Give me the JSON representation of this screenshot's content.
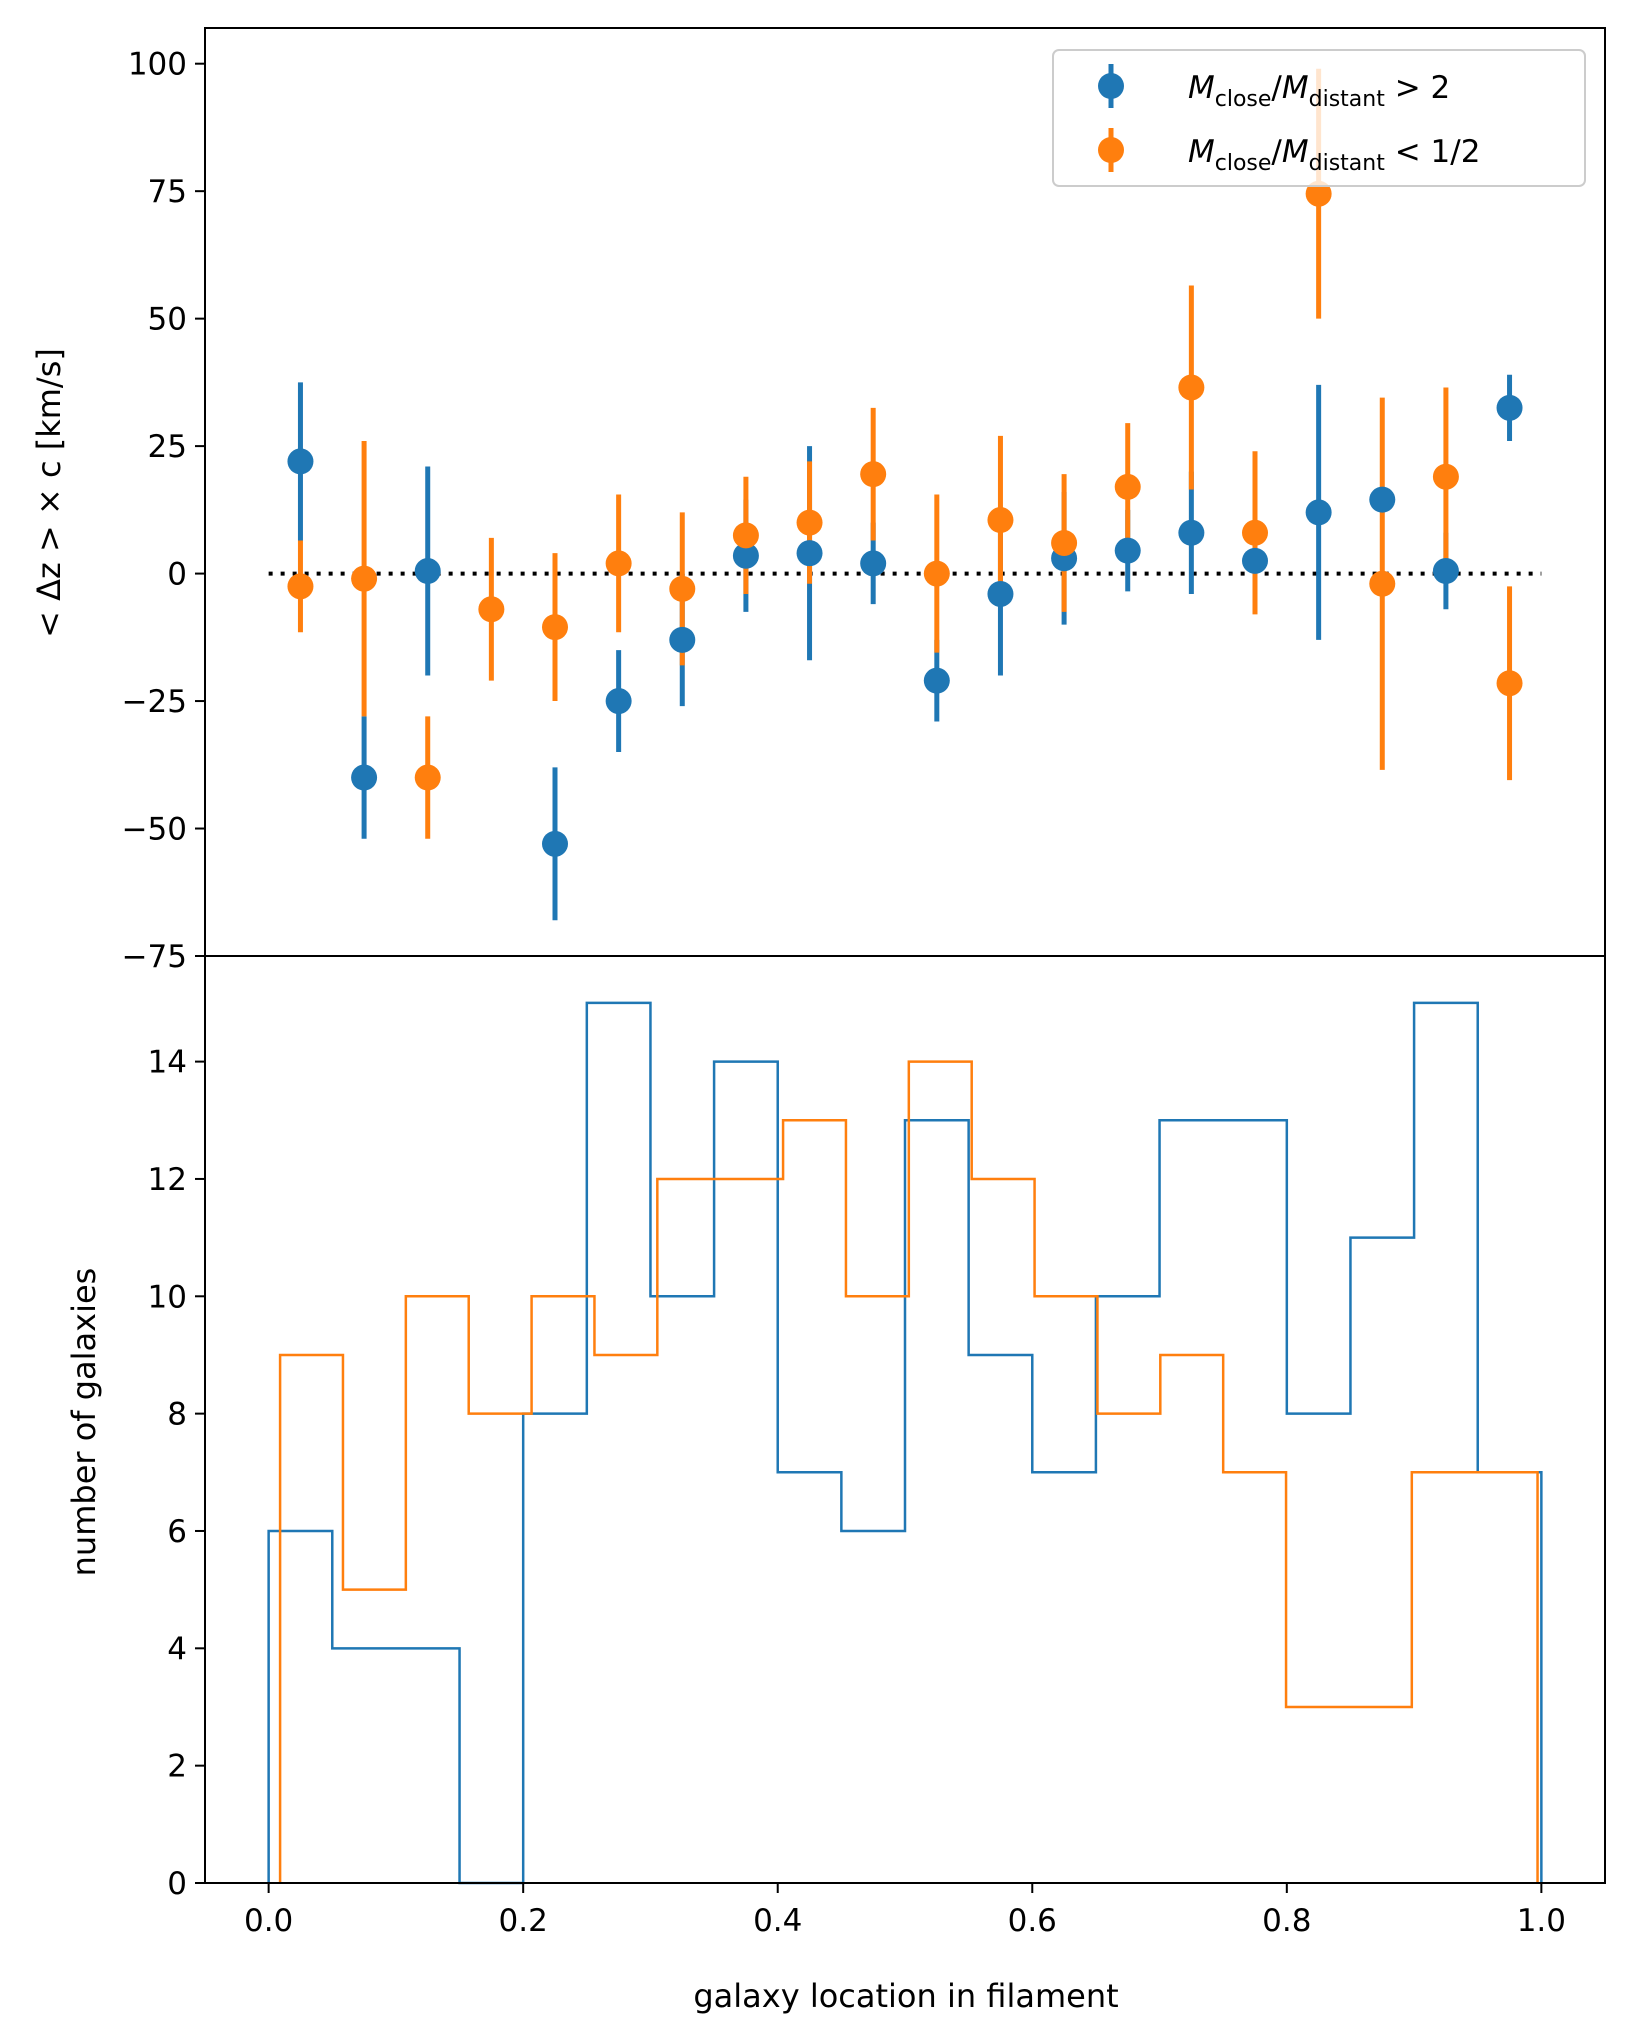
{
  "chart_data": [
    {
      "type": "scatter",
      "panel": "top",
      "title": "",
      "ylabel": "< Δz > × c [km/s]",
      "xlabel": "",
      "xlim": [
        -0.05,
        1.05
      ],
      "ylim": [
        -75,
        107
      ],
      "yticks": [
        -75,
        -50,
        -25,
        0,
        25,
        50,
        75,
        100
      ],
      "ytick_labels": [
        "−75",
        "−50",
        "−25",
        "0",
        "25",
        "50",
        "75",
        "100"
      ],
      "reference_line": {
        "y": 0,
        "x_from": 0.0,
        "x_to": 1.0,
        "style": "dotted",
        "color": "#000000"
      },
      "legend_location": "upper-right",
      "series": [
        {
          "name": "M_close/M_distant > 2",
          "legend": {
            "var1": "M",
            "sub1": "close",
            "slash": "/",
            "var2": "M",
            "sub2": "distant",
            "op": " > 2"
          },
          "color": "#1f77b4",
          "x": [
            0.025,
            0.075,
            0.125,
            0.175,
            0.225,
            0.275,
            0.325,
            0.375,
            0.425,
            0.475,
            0.525,
            0.575,
            0.625,
            0.675,
            0.725,
            0.775,
            0.825,
            0.875,
            0.925,
            0.975
          ],
          "y": [
            22,
            -40,
            0.5,
            null,
            -53,
            -25,
            -13,
            3.5,
            4,
            2,
            -21,
            -4,
            3,
            4.5,
            8,
            2.5,
            12,
            14.5,
            0.5,
            32.5
          ],
          "err": [
            15.5,
            12,
            20.5,
            null,
            15,
            10,
            13,
            11,
            21,
            8,
            8,
            16,
            13,
            8,
            12,
            3,
            25,
            0,
            7.5,
            6.5
          ]
        },
        {
          "name": "M_close/M_distant < 1/2",
          "legend": {
            "var1": "M",
            "sub1": "close",
            "slash": "/",
            "var2": "M",
            "sub2": "distant",
            "op": " < 1/2"
          },
          "color": "#ff7f0e",
          "x": [
            0.025,
            0.075,
            0.125,
            0.175,
            0.225,
            0.275,
            0.325,
            0.375,
            0.425,
            0.475,
            0.525,
            0.575,
            0.625,
            0.675,
            0.725,
            0.775,
            0.825,
            0.875,
            0.925,
            0.975
          ],
          "y": [
            -2.5,
            -1,
            -40,
            -7,
            -10.5,
            2,
            -3,
            7.5,
            10,
            19.5,
            0,
            10.5,
            6,
            17,
            36.5,
            8,
            74.5,
            -2,
            19,
            -21.5
          ],
          "err": [
            9,
            27,
            12,
            14,
            14.5,
            13.5,
            15,
            11.5,
            12,
            13,
            15.5,
            16.5,
            13.5,
            12.5,
            20,
            16,
            24.5,
            36.5,
            17.5,
            19
          ]
        }
      ]
    },
    {
      "type": "histogram",
      "panel": "bottom",
      "title": "",
      "xlabel": "galaxy location in filament",
      "ylabel": "number of galaxies",
      "xlim": [
        -0.05,
        1.05
      ],
      "ylim": [
        0,
        15.8
      ],
      "xticks": [
        0.0,
        0.2,
        0.4,
        0.6,
        0.8,
        1.0
      ],
      "xtick_labels": [
        "0.0",
        "0.2",
        "0.4",
        "0.6",
        "0.8",
        "1.0"
      ],
      "yticks": [
        0,
        2,
        4,
        6,
        8,
        10,
        12,
        14
      ],
      "ytick_labels": [
        "0",
        "2",
        "4",
        "6",
        "8",
        "10",
        "12",
        "14"
      ],
      "series": [
        {
          "name": "M_close/M_distant > 2",
          "color": "#1f77b4",
          "bin_edges": [
            0.0,
            0.05,
            0.1,
            0.15,
            0.2,
            0.25,
            0.3,
            0.35,
            0.4,
            0.45,
            0.5,
            0.55,
            0.6,
            0.65,
            0.7,
            0.75,
            0.8,
            0.85,
            0.9,
            0.95,
            1.0
          ],
          "counts": [
            6,
            4,
            4,
            0,
            8,
            15,
            10,
            14,
            7,
            6,
            13,
            9,
            7,
            10,
            13,
            13,
            8,
            11,
            15,
            7
          ]
        },
        {
          "name": "M_close/M_distant < 1/2",
          "color": "#ff7f0e",
          "bin_edges": [
            0.009,
            0.0584,
            0.1078,
            0.1572,
            0.2066,
            0.256,
            0.3054,
            0.3548,
            0.4042,
            0.4536,
            0.503,
            0.5524,
            0.6018,
            0.6512,
            0.7006,
            0.75,
            0.7994,
            0.8488,
            0.8982,
            0.9476,
            0.997
          ],
          "counts": [
            9,
            5,
            10,
            8,
            10,
            9,
            12,
            12,
            13,
            10,
            14,
            12,
            10,
            8,
            9,
            7,
            3,
            3,
            7,
            7
          ]
        }
      ]
    }
  ]
}
